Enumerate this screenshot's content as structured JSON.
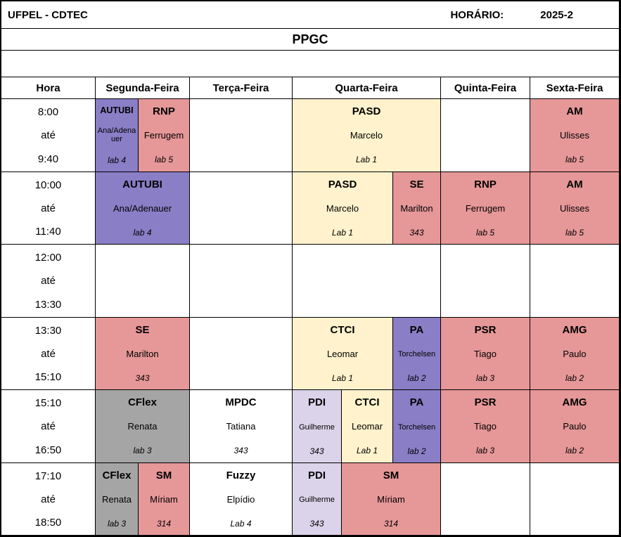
{
  "title_bar": {
    "institution": "UFPEL - CDTEC",
    "schedule_label": "HORÁRIO:",
    "term": "2025-2"
  },
  "program_title": "PPGC",
  "column_headers": {
    "hora": "Hora",
    "segunda": "Segunda-Feira",
    "terca": "Terça-Feira",
    "quarta": "Quarta-Feira",
    "quinta": "Quinta-Feira",
    "sexta": "Sexta-Feira"
  },
  "colors": {
    "purple": "#8A7EC6",
    "pink": "#E69798",
    "yellow": "#FFF2CC",
    "lavender": "#DAD3E9",
    "gray": "#A5A5A5",
    "border": "#000000"
  },
  "rows": [
    {
      "time": {
        "start": "8:00",
        "sep": "até",
        "end": "9:40"
      },
      "cells": {
        "seg_a": {
          "code": "AUTUBI",
          "teacher": "Ana/Adenauer",
          "room": "lab 4"
        },
        "seg_b": {
          "code": "RNP",
          "teacher": "Ferrugem",
          "room": "lab 5"
        },
        "qua": {
          "code": "PASD",
          "teacher": "Marcelo",
          "room": "Lab 1"
        },
        "sex": {
          "code": "AM",
          "teacher": "Ulisses",
          "room": "lab 5"
        }
      }
    },
    {
      "time": {
        "start": "10:00",
        "sep": "até",
        "end": "11:40"
      },
      "cells": {
        "seg": {
          "code": "AUTUBI",
          "teacher": "Ana/Adenauer",
          "room": "lab 4"
        },
        "qua_ab": {
          "code": "PASD",
          "teacher": "Marcelo",
          "room": "Lab 1"
        },
        "qua_c": {
          "code": "SE",
          "teacher": "Marilton",
          "room": "343"
        },
        "qui": {
          "code": "RNP",
          "teacher": "Ferrugem",
          "room": "lab 5"
        },
        "sex": {
          "code": "AM",
          "teacher": "Ulisses",
          "room": "lab 5"
        }
      }
    },
    {
      "time": {
        "start": "12:00",
        "sep": "até",
        "end": "13:30"
      },
      "cells": {}
    },
    {
      "time": {
        "start": "13:30",
        "sep": "até",
        "end": "15:10"
      },
      "cells": {
        "seg": {
          "code": "SE",
          "teacher": "Marilton",
          "room": "343"
        },
        "qua_ab": {
          "code": "CTCI",
          "teacher": "Leomar",
          "room": "Lab 1"
        },
        "qua_c": {
          "code": "PA",
          "teacher": "Torchelsen",
          "room": "lab 2"
        },
        "qui": {
          "code": "PSR",
          "teacher": "Tiago",
          "room": "lab 3"
        },
        "sex": {
          "code": "AMG",
          "teacher": "Paulo",
          "room": "lab 2"
        }
      }
    },
    {
      "time": {
        "start": "15:10",
        "sep": "até",
        "end": "16:50"
      },
      "cells": {
        "seg": {
          "code": "CFlex",
          "teacher": "Renata",
          "room": "lab 3"
        },
        "ter": {
          "code": "MPDC",
          "teacher": "Tatiana",
          "room": "343"
        },
        "qua_a": {
          "code": "PDI",
          "teacher": "Guilherme",
          "room": "343"
        },
        "qua_b": {
          "code": "CTCI",
          "teacher": "Leomar",
          "room": "Lab 1"
        },
        "qua_c": {
          "code": "PA",
          "teacher": "Torchelsen",
          "room": "lab 2"
        },
        "qui": {
          "code": "PSR",
          "teacher": "Tiago",
          "room": "lab 3"
        },
        "sex": {
          "code": "AMG",
          "teacher": "Paulo",
          "room": "lab 2"
        }
      }
    },
    {
      "time": {
        "start": "17:10",
        "sep": "até",
        "end": "18:50"
      },
      "cells": {
        "seg_a": {
          "code": "CFlex",
          "teacher": "Renata",
          "room": "lab 3"
        },
        "seg_b": {
          "code": "SM",
          "teacher": "Míriam",
          "room": "314"
        },
        "ter": {
          "code": "Fuzzy",
          "teacher": "Elpídio",
          "room": "Lab 4"
        },
        "qua_a": {
          "code": "PDI",
          "teacher": "Guilherme",
          "room": "343"
        },
        "qua_bc": {
          "code": "SM",
          "teacher": "Míriam",
          "room": "314"
        }
      }
    }
  ]
}
